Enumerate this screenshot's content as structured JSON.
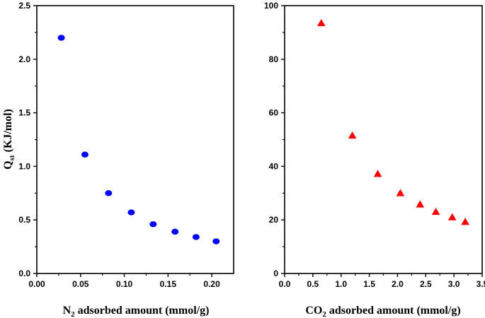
{
  "chart_data": [
    {
      "type": "scatter",
      "xlabel": "N2 adsorbed amount (mmol/g)",
      "xlabel_parts": [
        "N",
        "2",
        " adsorbed amount (mmol/g)"
      ],
      "ylabel": "Qst (KJ/mol)",
      "ylabel_parts": [
        "Q",
        "st",
        " (KJ/mol)"
      ],
      "xlim": [
        0.0,
        0.225
      ],
      "ylim": [
        0.0,
        2.5
      ],
      "xticks": [
        0.0,
        0.05,
        0.1,
        0.15,
        0.2
      ],
      "xtick_labels": [
        "0.00",
        "0.05",
        "0.10",
        "0.15",
        "0.20"
      ],
      "yticks": [
        0.0,
        0.5,
        1.0,
        1.5,
        2.0,
        2.5
      ],
      "ytick_labels": [
        "0.0",
        "0.5",
        "1.0",
        "1.5",
        "2.0",
        "2.5"
      ],
      "grid": false,
      "marker": "circle",
      "color": "#0000ff",
      "series": [
        {
          "x": [
            0.028,
            0.055,
            0.082,
            0.108,
            0.133,
            0.158,
            0.182,
            0.205
          ],
          "y": [
            2.2,
            1.11,
            0.75,
            0.57,
            0.46,
            0.39,
            0.34,
            0.3
          ]
        }
      ]
    },
    {
      "type": "scatter",
      "xlabel": "CO2 adsorbed amount (mmol/g)",
      "xlabel_parts": [
        "CO",
        "2",
        " adsorbed amount (mmol/g)"
      ],
      "ylabel": "",
      "xlim": [
        0.0,
        3.5
      ],
      "ylim": [
        0,
        100
      ],
      "xticks": [
        0.0,
        0.5,
        1.0,
        1.5,
        2.0,
        2.5,
        3.0,
        3.5
      ],
      "xtick_labels": [
        "0.0",
        "0.5",
        "1.0",
        "1.5",
        "2.0",
        "2.5",
        "3.0",
        "3.5"
      ],
      "yticks": [
        0,
        20,
        40,
        60,
        80,
        100
      ],
      "ytick_labels": [
        "0",
        "20",
        "40",
        "60",
        "80",
        "100"
      ],
      "grid": false,
      "marker": "triangle",
      "color": "#ff0000",
      "series": [
        {
          "x": [
            0.65,
            1.2,
            1.65,
            2.05,
            2.4,
            2.68,
            2.97,
            3.2
          ],
          "y": [
            93.5,
            51.5,
            37.2,
            30.0,
            25.8,
            23.0,
            21.0,
            19.3
          ]
        }
      ]
    }
  ]
}
